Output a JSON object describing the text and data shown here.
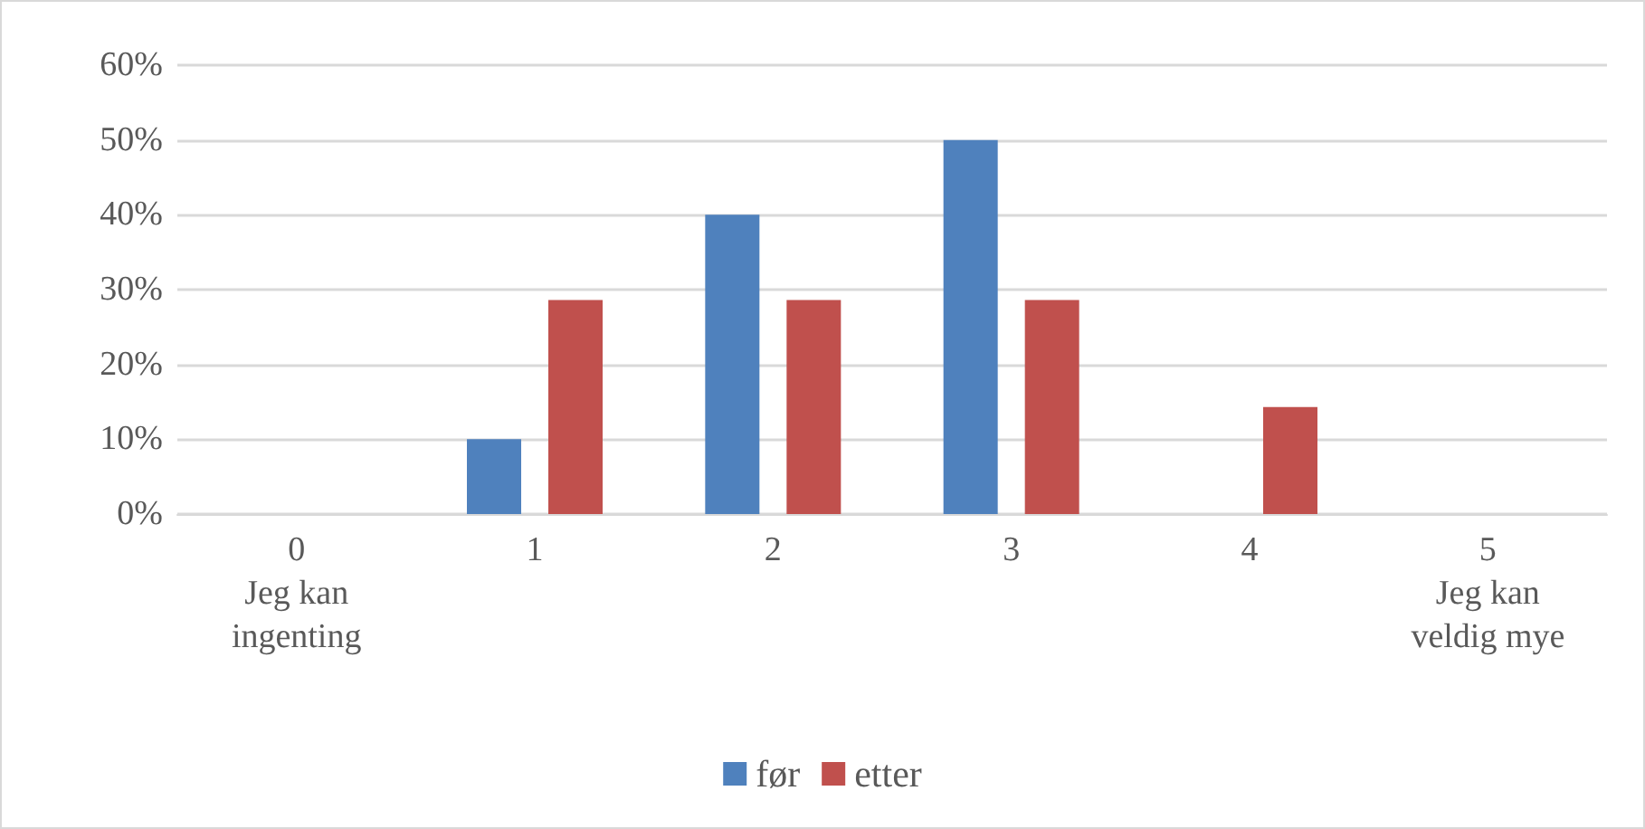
{
  "chart_data": {
    "type": "bar",
    "categories": [
      "0\nJeg kan\ningenting",
      "1",
      "2",
      "3",
      "4",
      "5\nJeg kan\nveldig mye"
    ],
    "series": [
      {
        "name": "før",
        "color": "#4f81bd",
        "values": [
          0,
          10,
          40,
          50,
          0,
          0
        ]
      },
      {
        "name": "etter",
        "color": "#c0504d",
        "values": [
          0,
          28.6,
          28.6,
          28.6,
          14.3,
          0
        ]
      }
    ],
    "ylim": [
      0,
      60
    ],
    "yticks": [
      {
        "value": 0,
        "label": "0%"
      },
      {
        "value": 10,
        "label": "10%"
      },
      {
        "value": 20,
        "label": "20%"
      },
      {
        "value": 30,
        "label": "30%"
      },
      {
        "value": 40,
        "label": "40%"
      },
      {
        "value": 50,
        "label": "50%"
      },
      {
        "value": 60,
        "label": "60%"
      }
    ],
    "grid": "y",
    "legend": "bottom"
  }
}
